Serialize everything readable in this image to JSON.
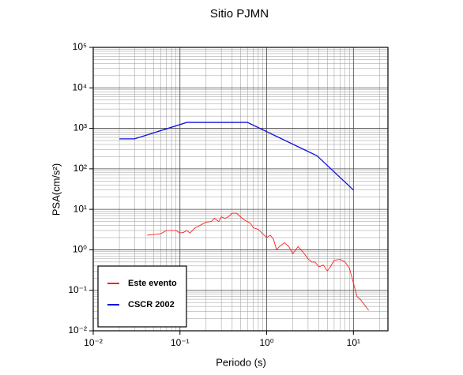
{
  "chart_data": {
    "type": "line",
    "title": "Sitio PJMN",
    "x_label": "Periodo (s)",
    "y_label": "PSA(cm/s²)",
    "x_scale": "log",
    "y_scale": "log",
    "grid": true,
    "legend": "lower left",
    "xlim": [
      0.01,
      25
    ],
    "xticks": [
      {
        "value": 0.01,
        "label": "10⁻²"
      },
      {
        "value": 0.1,
        "label": "10⁻¹"
      },
      {
        "value": 1,
        "label": "10⁰"
      },
      {
        "value": 10,
        "label": "10¹"
      }
    ],
    "ylim": [
      0.01,
      100000
    ],
    "yticks": [
      {
        "value": 0.01,
        "label": "10⁻²"
      },
      {
        "value": 0.1,
        "label": "10⁻¹"
      },
      {
        "value": 1,
        "label": "10⁰"
      },
      {
        "value": 10,
        "label": "10¹"
      },
      {
        "value": 100,
        "label": "10²"
      },
      {
        "value": 1000,
        "label": "10³"
      },
      {
        "value": 10000,
        "label": "10⁴"
      },
      {
        "value": 100000,
        "label": "10⁵"
      }
    ],
    "series": [
      {
        "name": "Este evento",
        "color": "#ff2020",
        "x": [
          0.042,
          0.05,
          0.06,
          0.07,
          0.08,
          0.09,
          0.1,
          0.11,
          0.12,
          0.13,
          0.15,
          0.17,
          0.2,
          0.23,
          0.25,
          0.28,
          0.3,
          0.33,
          0.36,
          0.4,
          0.45,
          0.5,
          0.55,
          0.6,
          0.65,
          0.7,
          0.8,
          0.9,
          1.0,
          1.1,
          1.2,
          1.3,
          1.4,
          1.6,
          1.8,
          2.0,
          2.3,
          2.6,
          3.0,
          3.3,
          3.6,
          4.0,
          4.5,
          5.0,
          5.5,
          6.0,
          7.0,
          8.0,
          9.0,
          10,
          11,
          12,
          15
        ],
        "values": [
          2.3,
          2.4,
          2.5,
          3.0,
          3.0,
          3.0,
          2.6,
          2.7,
          3.0,
          2.6,
          3.5,
          4.0,
          4.8,
          5.0,
          6.0,
          5.0,
          6.5,
          6.0,
          6.5,
          8.0,
          8.0,
          6.5,
          5.5,
          5.0,
          4.5,
          3.5,
          3.2,
          2.5,
          2.0,
          2.3,
          1.8,
          1.0,
          1.2,
          1.5,
          1.2,
          0.8,
          1.2,
          0.9,
          0.6,
          0.5,
          0.5,
          0.38,
          0.42,
          0.3,
          0.4,
          0.55,
          0.58,
          0.5,
          0.35,
          0.15,
          0.07,
          0.06,
          0.032
        ]
      },
      {
        "name": "CSCR 2002",
        "color": "#1010e0",
        "x": [
          0.02,
          0.03,
          0.12,
          0.6,
          3.8,
          10
        ],
        "values": [
          550,
          550,
          1400,
          1400,
          210,
          30
        ]
      }
    ]
  }
}
